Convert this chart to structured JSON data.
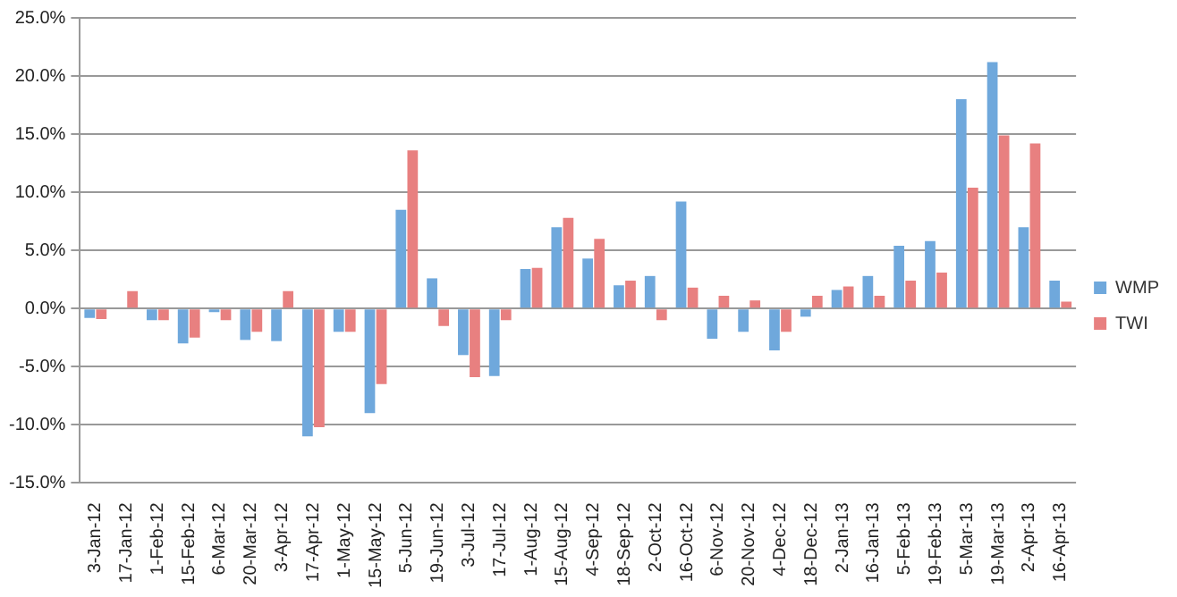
{
  "chart_data": {
    "type": "bar",
    "categories": [
      "3-Jan-12",
      "17-Jan-12",
      "1-Feb-12",
      "15-Feb-12",
      "6-Mar-12",
      "20-Mar-12",
      "3-Apr-12",
      "17-Apr-12",
      "1-May-12",
      "15-May-12",
      "5-Jun-12",
      "19-Jun-12",
      "3-Jul-12",
      "17-Jul-12",
      "1-Aug-12",
      "15-Aug-12",
      "4-Sep-12",
      "18-Sep-12",
      "2-Oct-12",
      "16-Oct-12",
      "6-Nov-12",
      "20-Nov-12",
      "4-Dec-12",
      "18-Dec-12",
      "2-Jan-13",
      "16-Jan-13",
      "5-Feb-13",
      "19-Feb-13",
      "5-Mar-13",
      "19-Mar-13",
      "2-Apr-13",
      "16-Apr-13"
    ],
    "series": [
      {
        "name": "WMP",
        "color": "#6fa8dc",
        "values": [
          -0.8,
          0,
          -1.0,
          -3.0,
          -0.3,
          -2.7,
          -2.8,
          -11.0,
          -2.0,
          -9.0,
          8.5,
          2.6,
          -4.0,
          -5.8,
          3.4,
          7.0,
          4.3,
          2.0,
          2.8,
          9.2,
          -2.6,
          -2.0,
          -3.6,
          -0.7,
          1.6,
          2.8,
          5.4,
          5.8,
          18.0,
          21.2,
          7.0,
          2.4
        ]
      },
      {
        "name": "TWI",
        "color": "#e88080",
        "values": [
          -0.9,
          1.5,
          -1.0,
          -2.5,
          -1.0,
          -2.0,
          1.5,
          -10.2,
          -2.0,
          -6.5,
          13.6,
          -1.5,
          -5.9,
          -1.0,
          3.5,
          7.8,
          6.0,
          2.4,
          -1.0,
          1.8,
          1.1,
          0.7,
          -2.0,
          1.1,
          1.9,
          1.1,
          2.4,
          3.1,
          10.4,
          14.9,
          14.2,
          0.6
        ]
      }
    ],
    "ylim": [
      -15,
      25
    ],
    "yticks": [
      {
        "value": -15,
        "label": "-15.0%"
      },
      {
        "value": -10,
        "label": "-10.0%"
      },
      {
        "value": -5,
        "label": "-5.0%"
      },
      {
        "value": 0,
        "label": "0.0%"
      },
      {
        "value": 5,
        "label": "5.0%"
      },
      {
        "value": 10,
        "label": "10.0%"
      },
      {
        "value": 15,
        "label": "15.0%"
      },
      {
        "value": 20,
        "label": "20.0%"
      },
      {
        "value": 25,
        "label": "25.0%"
      }
    ],
    "grid": "y",
    "legend": "right"
  }
}
